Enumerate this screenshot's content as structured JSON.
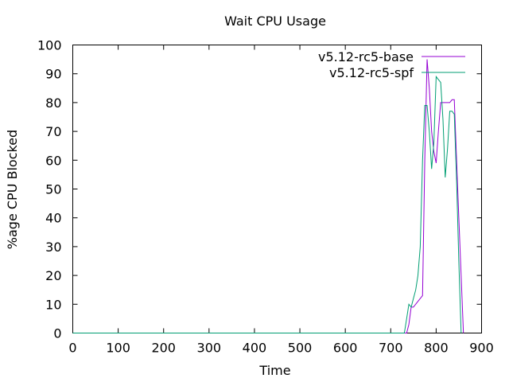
{
  "chart_data": {
    "type": "line",
    "title": "Wait CPU Usage",
    "xlabel": "Time",
    "ylabel": "%age CPU Blocked",
    "xlim": [
      0,
      900
    ],
    "ylim": [
      0,
      100
    ],
    "xticks": [
      0,
      100,
      200,
      300,
      400,
      500,
      600,
      700,
      800,
      900
    ],
    "yticks": [
      0,
      10,
      20,
      30,
      40,
      50,
      60,
      70,
      80,
      90,
      100
    ],
    "grid": false,
    "legend": "top-right",
    "series": [
      {
        "name": "v5.12-rc5-base",
        "color": "#9400d3",
        "x": [
          0,
          735,
          740,
          745,
          750,
          760,
          770,
          775,
          780,
          785,
          790,
          795,
          800,
          805,
          810,
          820,
          830,
          835,
          840,
          845,
          850,
          855,
          860
        ],
        "y": [
          0,
          0,
          3,
          9,
          9,
          11,
          13,
          60,
          95,
          85,
          70,
          63,
          59,
          70,
          80,
          80,
          80,
          81,
          81,
          60,
          40,
          20,
          0
        ]
      },
      {
        "name": "v5.12-rc5-spf",
        "color": "#009e73",
        "x": [
          0,
          730,
          735,
          740,
          745,
          750,
          755,
          760,
          765,
          770,
          775,
          780,
          785,
          790,
          795,
          800,
          805,
          810,
          815,
          820,
          825,
          830,
          835,
          840,
          845,
          850,
          855
        ],
        "y": [
          0,
          0,
          5,
          10,
          9,
          12,
          15,
          20,
          30,
          60,
          79,
          79,
          70,
          57,
          66,
          89,
          88,
          87,
          74,
          54,
          64,
          77,
          77,
          76,
          53,
          25,
          0
        ]
      }
    ]
  }
}
